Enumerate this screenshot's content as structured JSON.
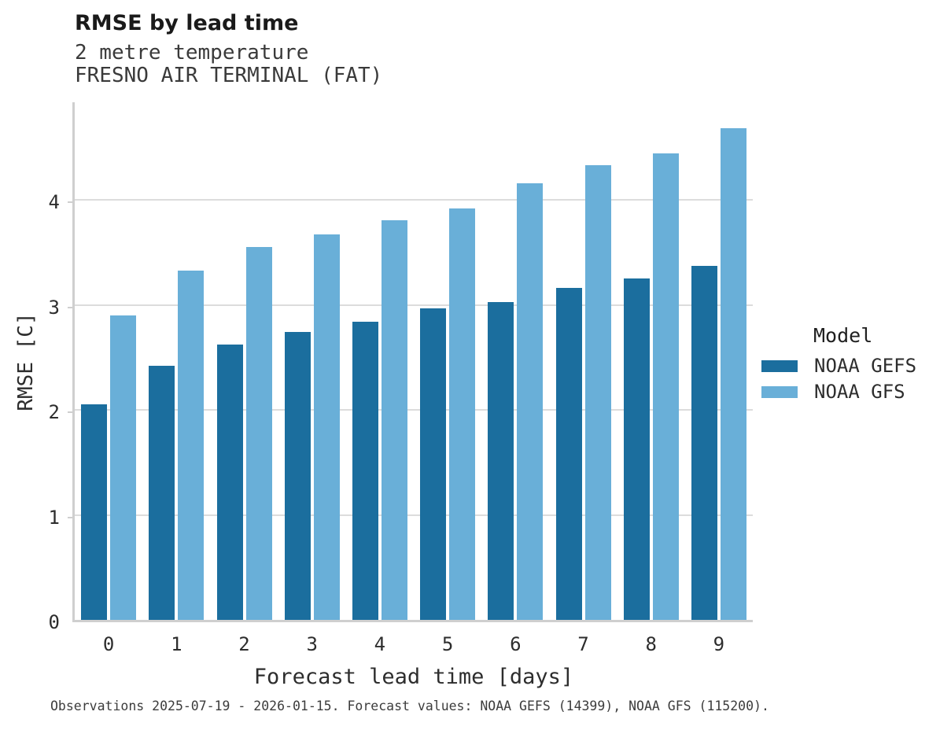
{
  "header": {
    "title": "RMSE by lead time",
    "subtitle_line1": "2 metre temperature",
    "subtitle_line2": "FRESNO AIR TERMINAL (FAT)"
  },
  "chart_data": {
    "type": "bar",
    "categories": [
      "0",
      "1",
      "2",
      "3",
      "4",
      "5",
      "6",
      "7",
      "8",
      "9"
    ],
    "series": [
      {
        "name": "NOAA GEFS",
        "color": "#1B6E9E",
        "values": [
          2.05,
          2.42,
          2.62,
          2.74,
          2.84,
          2.97,
          3.03,
          3.16,
          3.25,
          3.37
        ]
      },
      {
        "name": "NOAA GFS",
        "color": "#69AFD8",
        "values": [
          2.9,
          3.33,
          3.55,
          3.67,
          3.81,
          3.92,
          4.16,
          4.33,
          4.44,
          4.68
        ]
      }
    ],
    "title": "RMSE by lead time",
    "xlabel": "Forecast lead time [days]",
    "ylabel": "RMSE [C]",
    "ylim": [
      0,
      4.93
    ],
    "yticks": [
      0,
      1,
      2,
      3,
      4
    ],
    "grid": true,
    "legend_title": "Model",
    "legend_position": "right"
  },
  "footer": {
    "note": "Observations 2025-07-19 - 2026-01-15. Forecast values: NOAA GEFS (14399), NOAA GFS (115200)."
  },
  "colors": {
    "gefs_dark_blue": "#1B6E9E",
    "gfs_light_blue": "#69AFD8",
    "gridline": "#DCDCDC",
    "spine": "#CFCFCF",
    "title_text": "#1A1A1A",
    "body_text": "#2D2D2D"
  }
}
